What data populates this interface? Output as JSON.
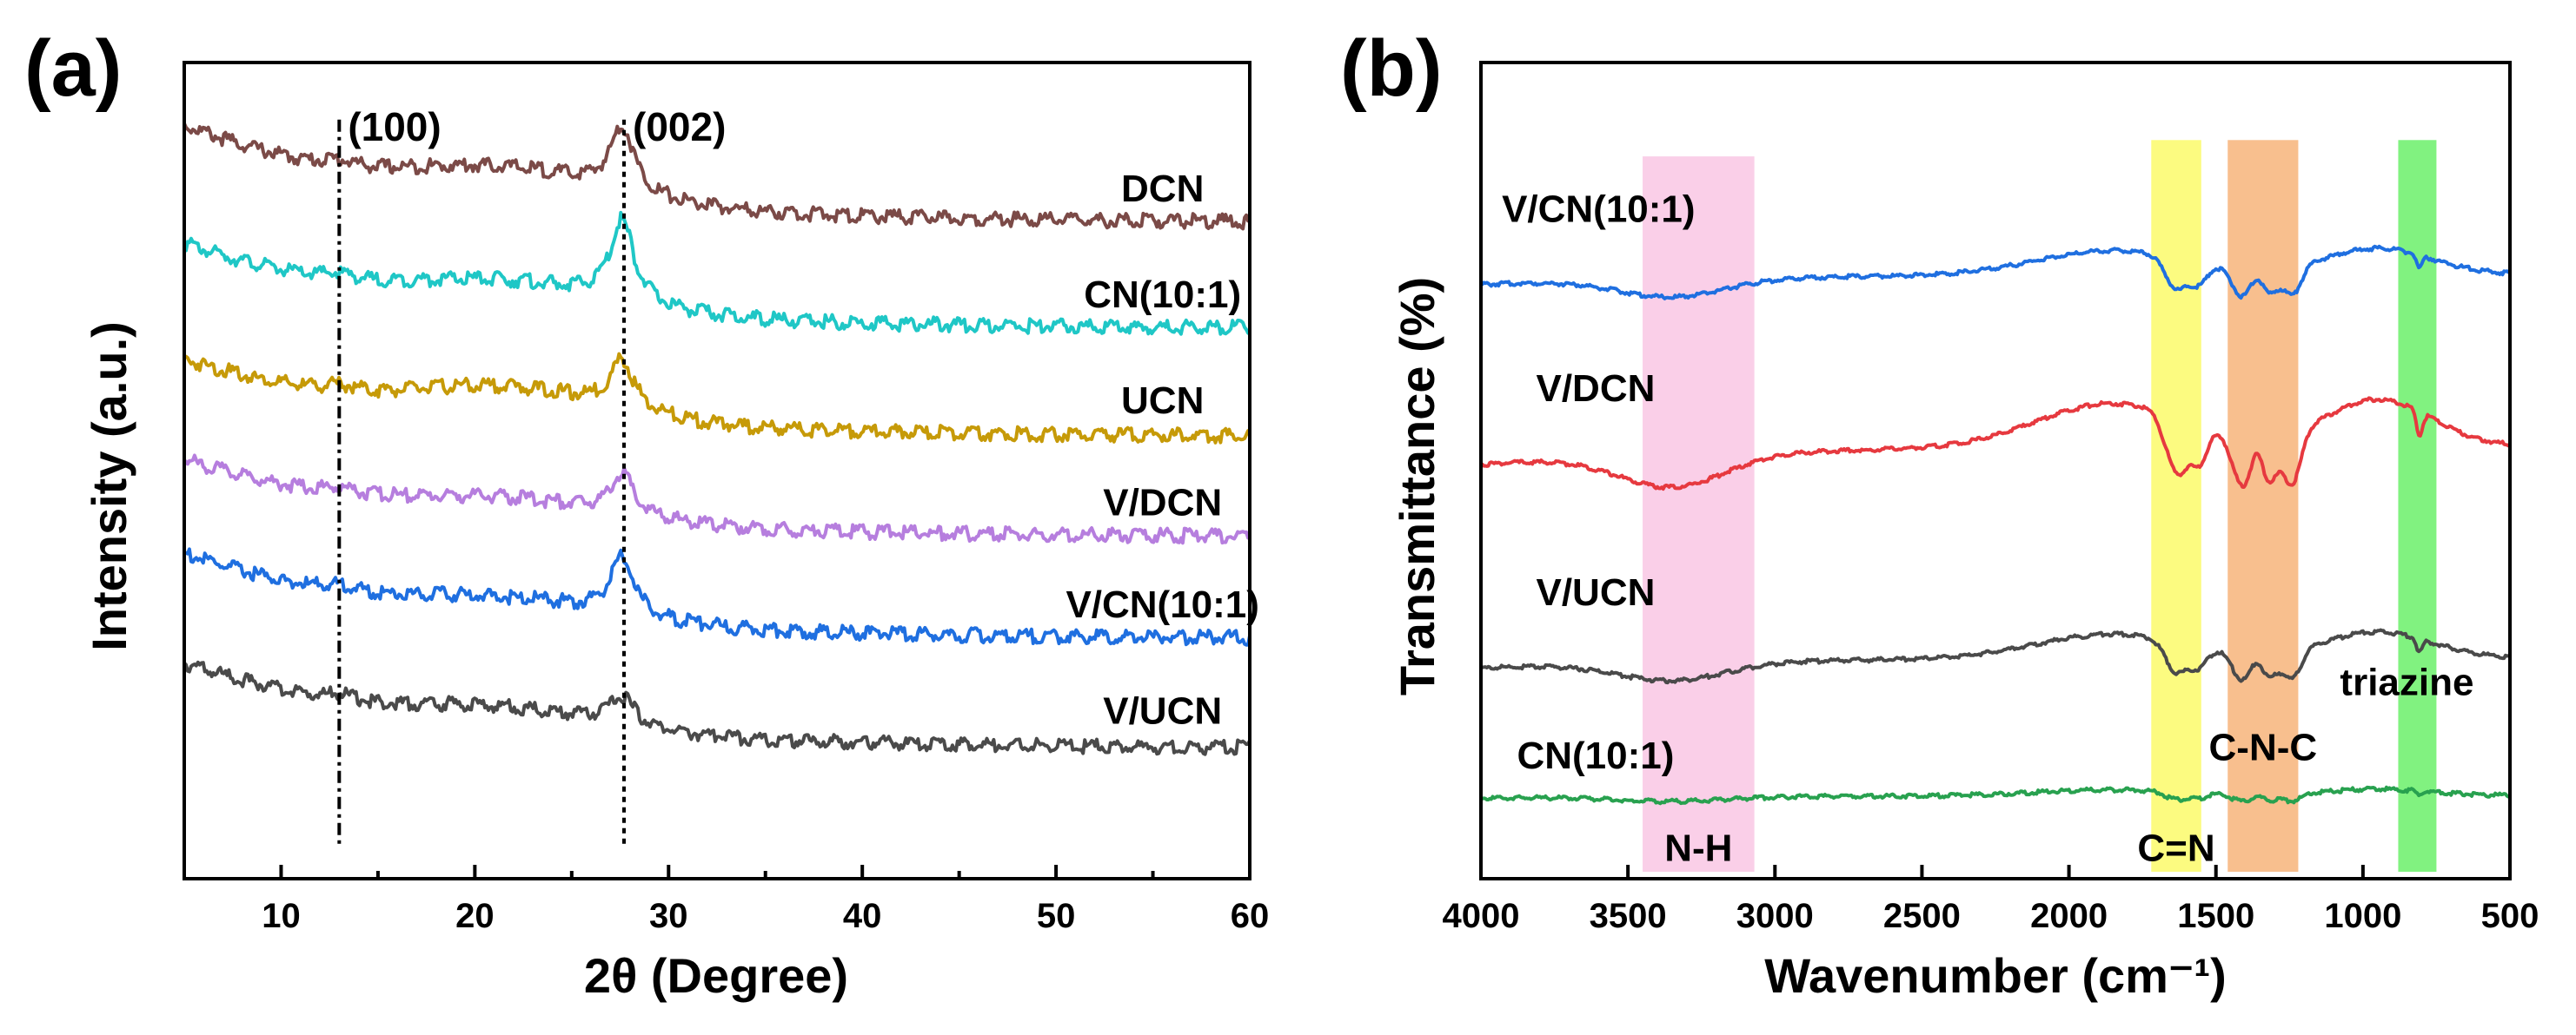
{
  "chart_data": [
    {
      "panel": "(a)",
      "type": "line",
      "xlabel": "2θ (Degree)",
      "ylabel": "Intensity (a.u.)",
      "xlim": [
        5,
        60
      ],
      "x_ticks": [
        10,
        20,
        30,
        40,
        50,
        60
      ],
      "ylim": [
        0,
        100
      ],
      "grid": false,
      "annotations": [
        {
          "label": "(100)",
          "x": 13.0,
          "style": "dash-dot"
        },
        {
          "label": "(002)",
          "x": 27.7,
          "style": "dotted"
        }
      ],
      "series": [
        {
          "name": "DCN",
          "color": "#7b4a47",
          "offset": 80,
          "start": 12,
          "tail": 0.8,
          "hump": 3.5,
          "peak": 8
        },
        {
          "name": "CN(10:1)",
          "color": "#1fc7c6",
          "offset": 67,
          "start": 10.5,
          "tail": 0.8,
          "hump": 3.0,
          "peak": 10
        },
        {
          "name": "UCN",
          "color": "#c69a08",
          "offset": 54,
          "start": 9.5,
          "tail": 0.6,
          "hump": 3.5,
          "peak": 6
        },
        {
          "name": "V/DCN",
          "color": "#b67ede",
          "offset": 41.5,
          "start": 9.5,
          "tail": 0.8,
          "hump": 2.2,
          "peak": 5
        },
        {
          "name": "V/CN(10:1)",
          "color": "#1f6fe0",
          "offset": 29,
          "start": 10.5,
          "tail": 0.8,
          "hump": 2.2,
          "peak": 7
        },
        {
          "name": "V/UCN",
          "color": "#4a4a4a",
          "offset": 16,
          "start": 10.5,
          "tail": 0.4,
          "hump": 2.2,
          "peak": 3.5
        }
      ]
    },
    {
      "panel": "(b)",
      "type": "line",
      "xlabel": "Wavenumber (cm⁻¹)",
      "ylabel": "Transmittance (%)",
      "xlim": [
        4000,
        500
      ],
      "x_ticks": [
        4000,
        3500,
        3000,
        2500,
        2000,
        1500,
        1000,
        500
      ],
      "ylim": [
        0,
        100
      ],
      "grid": false,
      "bands": [
        {
          "label": "N-H",
          "from": 3450,
          "to": 3070,
          "color": "#f9c7e4"
        },
        {
          "label": "C=N",
          "from": 1720,
          "to": 1550,
          "color": "#fbfa6a"
        },
        {
          "label": "C-N-C",
          "from": 1460,
          "to": 1220,
          "color": "#f7b47a"
        },
        {
          "label": "triazine",
          "from": 880,
          "to": 750,
          "color": "#6bf06a"
        }
      ],
      "series": [
        {
          "name": "V/CN(10:1)",
          "color": "#1f6fe0",
          "offset": 73,
          "scale": 1.0
        },
        {
          "name": "V/DCN",
          "color": "#e6393f",
          "offset": 51,
          "scale": 1.8
        },
        {
          "name": "V/UCN",
          "color": "#4a4a4a",
          "offset": 26,
          "scale": 1.0
        },
        {
          "name": "CN(10:1)",
          "color": "#28a14f",
          "offset": 10,
          "scale": 0.25
        }
      ]
    }
  ]
}
